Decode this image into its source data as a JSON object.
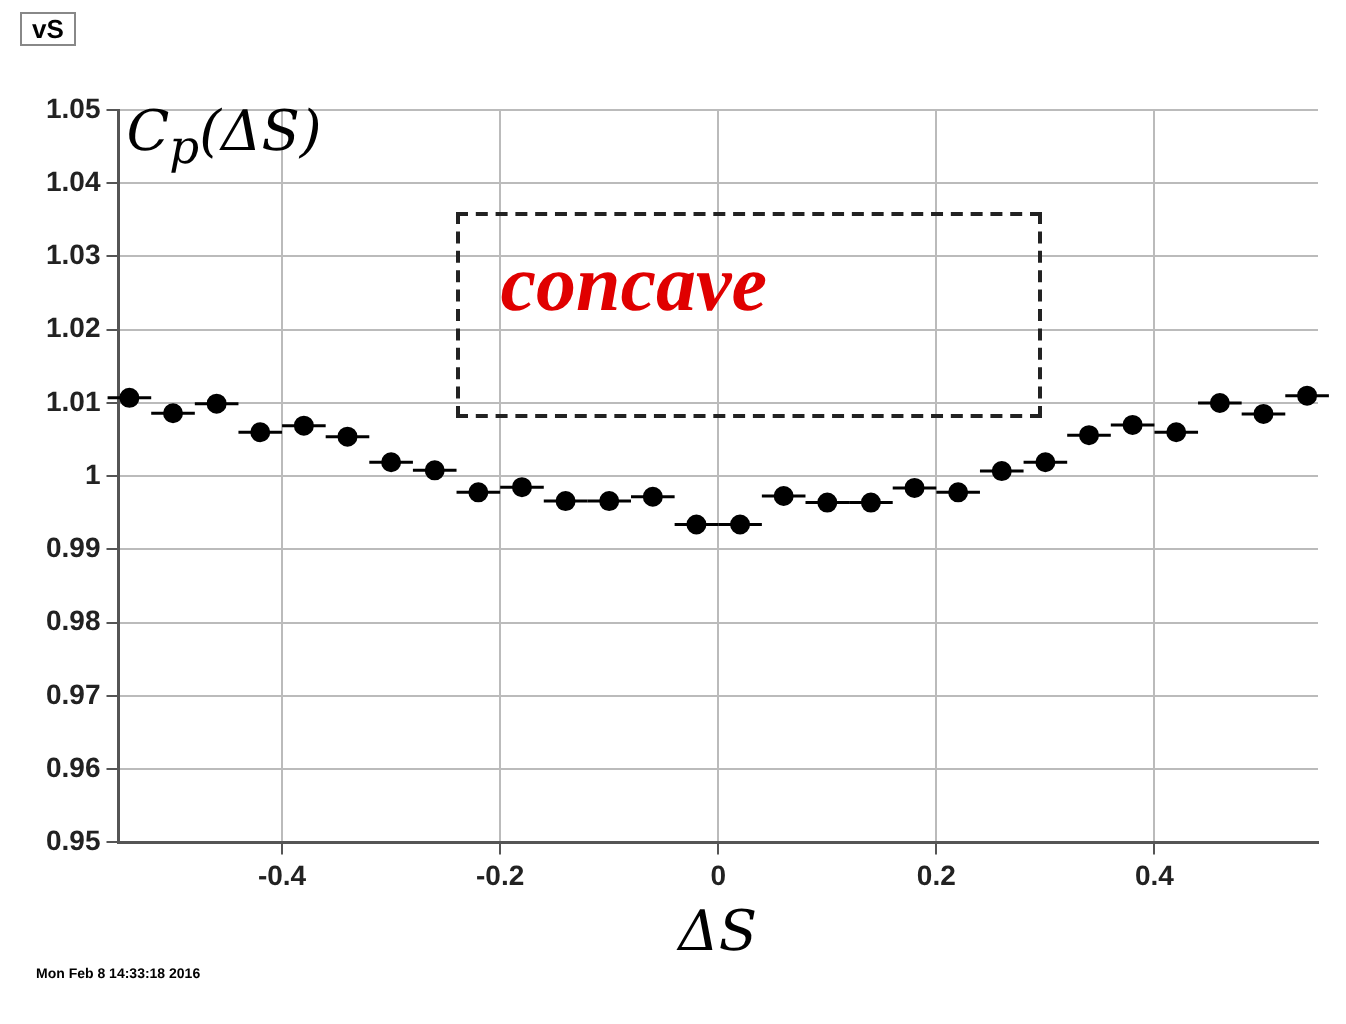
{
  "chart_data": {
    "type": "scatter",
    "title": "vS",
    "xlabel": "ΔS",
    "ylabel": "C$_{p}$(ΔS)",
    "annotations": [
      "concave",
      "Mon Feb 8 14:33:18 2016"
    ],
    "x": [
      -0.54,
      -0.5,
      -0.46,
      -0.42,
      -0.38,
      -0.34,
      -0.3,
      -0.26,
      -0.22,
      -0.18,
      -0.14,
      -0.1,
      -0.06,
      -0.02,
      0.02,
      0.06,
      0.1,
      0.14,
      0.18,
      0.22,
      0.26,
      0.3,
      0.34,
      0.38,
      0.42,
      0.46,
      0.5,
      0.54
    ],
    "series": [
      {
        "color": "#000000",
        "values": [
          1.0107,
          1.0086,
          1.0099,
          1.006,
          1.0069,
          1.0054,
          1.0019,
          1.0008,
          0.9978,
          0.9985,
          0.9966,
          0.9966,
          0.9972,
          0.9934,
          0.9934,
          0.9973,
          0.9964,
          0.9964,
          0.9984,
          0.9978,
          1.0007,
          1.0019,
          1.0056,
          1.007,
          1.006,
          1.01,
          1.0085,
          1.011
        ],
        "xerrors": [
          0.02,
          0.02,
          0.02,
          0.02,
          0.02,
          0.02,
          0.02,
          0.02,
          0.02,
          0.02,
          0.02,
          0.02,
          0.02,
          0.02,
          0.02,
          0.02,
          0.02,
          0.02,
          0.02,
          0.02,
          0.02,
          0.02,
          0.02,
          0.02,
          0.02,
          0.02,
          0.02,
          0.02
        ]
      }
    ],
    "xlim": [
      -0.55,
      0.55
    ],
    "xticks": [
      -0.4,
      -0.2,
      0,
      0.2,
      0.4
    ],
    "ylim": [
      0.95,
      1.05
    ],
    "yticks": [
      0.95,
      0.96,
      0.97,
      0.98,
      0.99,
      {
        "value": 1,
        "label": "1"
      },
      1.01,
      1.02,
      1.03,
      1.04,
      1.05
    ],
    "grid": true,
    "marker": "circle",
    "legend": false
  }
}
